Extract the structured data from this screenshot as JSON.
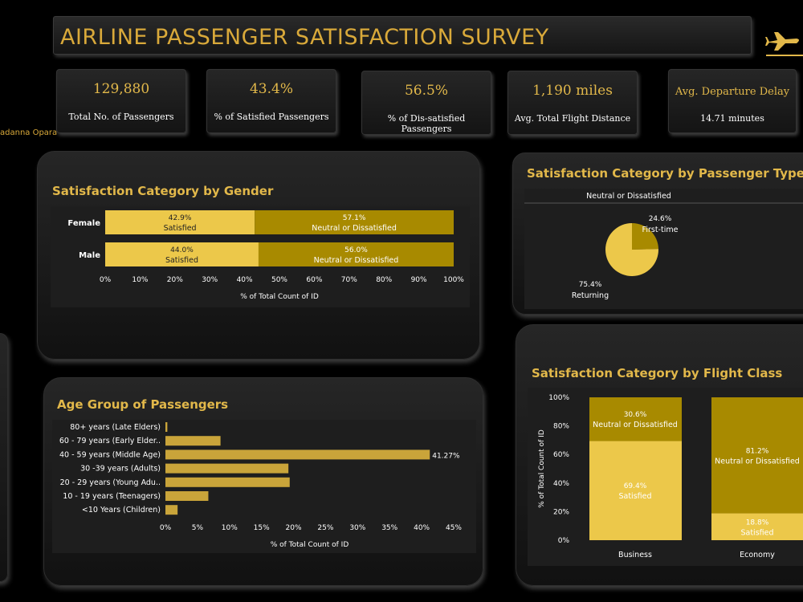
{
  "header": {
    "title": "AIRLINE PASSENGER SATISFACTION SURVEY",
    "icon": "airplane-icon",
    "author": "adanna Opara"
  },
  "kpis": [
    {
      "value": "129,880",
      "label": "Total No. of Passengers"
    },
    {
      "value": "43.4%",
      "label": "% of Satisfied Passengers"
    },
    {
      "value": "56.5%",
      "label": "% of Dis-satisfied Passengers"
    },
    {
      "value": "1,190 miles",
      "label": "Avg. Total Flight Distance"
    },
    {
      "value": "Avg. Departure Delay",
      "label": "14.71 minutes"
    }
  ],
  "colors": {
    "light_gold": "#ecc84a",
    "dark_gold": "#a88a00",
    "bar_gold": "#c9a43a",
    "title_gold": "#e2b84a"
  },
  "chart_data": [
    {
      "type": "bar",
      "orientation": "horizontal-stacked",
      "title": "Satisfaction Category by Gender",
      "categories": [
        "Female",
        "Male"
      ],
      "series": [
        {
          "name": "Satisfied",
          "values": [
            42.9,
            44.0
          ],
          "labels": [
            "42.9%",
            "44.0%"
          ]
        },
        {
          "name": "Neutral or Dissatisfied",
          "values": [
            57.1,
            56.0
          ],
          "labels": [
            "57.1%",
            "56.0%"
          ]
        }
      ],
      "xticks": [
        "0%",
        "10%",
        "20%",
        "30%",
        "40%",
        "50%",
        "60%",
        "70%",
        "80%",
        "90%",
        "100%"
      ],
      "xlim": [
        0,
        100
      ],
      "xlabel": "% of Total Count of ID"
    },
    {
      "type": "pie",
      "title": "Satisfaction Category by Passenger Type",
      "subtitle": "Neutral or Dissatisfied",
      "slices": [
        {
          "name": "First-time",
          "value": 24.6,
          "label": "24.6%"
        },
        {
          "name": "Returning",
          "value": 75.4,
          "label": "75.4%"
        }
      ],
      "clipped_label": "Re"
    },
    {
      "type": "bar",
      "orientation": "horizontal",
      "title": "Age Group of Passengers",
      "categories": [
        "80+ years (Late Elders)",
        "60 - 79 years (Early Elder..",
        "40 - 59 years (Middle Age)",
        "30 -39 years (Adults)",
        "20 - 29 years (Young Adu..",
        "10 - 19 years (Teenagers)",
        "<10 Years (Children)"
      ],
      "values": [
        0.3,
        8.6,
        41.27,
        19.2,
        19.4,
        6.7,
        1.9
      ],
      "data_labels": [
        "",
        "",
        "41.27%",
        "",
        "",
        "",
        ""
      ],
      "xticks": [
        "0%",
        "5%",
        "10%",
        "15%",
        "20%",
        "25%",
        "30%",
        "35%",
        "40%",
        "45%"
      ],
      "xlim": [
        0,
        45
      ],
      "xlabel": "% of Total Count of ID"
    },
    {
      "type": "bar",
      "orientation": "vertical-stacked",
      "title": "Satisfaction Category by Flight Class",
      "categories": [
        "Business",
        "Economy"
      ],
      "series": [
        {
          "name": "Satisfied",
          "values": [
            69.4,
            18.8
          ],
          "labels": [
            "69.4%",
            "18.8%"
          ]
        },
        {
          "name": "Neutral or Dissatisfied",
          "values": [
            30.6,
            81.2
          ],
          "labels": [
            "30.6%",
            "81.2%"
          ]
        }
      ],
      "yticks": [
        "0%",
        "20%",
        "40%",
        "60%",
        "80%",
        "100%"
      ],
      "ylim": [
        0,
        100
      ],
      "ylabel": "% of Total Count of ID"
    }
  ]
}
